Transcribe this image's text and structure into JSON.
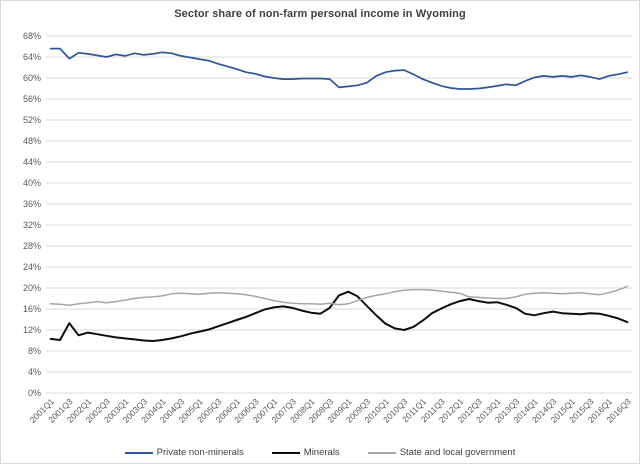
{
  "chart": {
    "border_color": "#d9d9d9",
    "background": "#ffffff"
  },
  "chart_data": {
    "type": "line",
    "title": "Sector share of non-farm personal income in Wyoming",
    "xlabel": "",
    "ylabel": "",
    "ylim": [
      0,
      68
    ],
    "ytick_step": 4,
    "ytick_suffix": "%",
    "x_tick_every": 2,
    "grid": true,
    "legend_position": "bottom",
    "style": {
      "grid_color": "#d9d9d9",
      "tick_label_color": "#595959",
      "title_color": "#404040",
      "legend_text_color": "#404040"
    },
    "categories": [
      "2001Q1",
      "2001Q2",
      "2001Q3",
      "2001Q4",
      "2002Q1",
      "2002Q2",
      "2002Q3",
      "2002Q4",
      "2003Q1",
      "2003Q2",
      "2003Q3",
      "2003Q4",
      "2004Q1",
      "2004Q2",
      "2004Q3",
      "2004Q4",
      "2005Q1",
      "2005Q2",
      "2005Q3",
      "2005Q4",
      "2006Q1",
      "2006Q2",
      "2006Q3",
      "2006Q4",
      "2007Q1",
      "2007Q2",
      "2007Q3",
      "2007Q4",
      "2008Q1",
      "2008Q2",
      "2008Q3",
      "2008Q4",
      "2009Q1",
      "2009Q2",
      "2009Q3",
      "2009Q4",
      "2010Q1",
      "2010Q2",
      "2010Q3",
      "2010Q4",
      "2011Q1",
      "2011Q2",
      "2011Q3",
      "2011Q4",
      "2012Q1",
      "2012Q2",
      "2012Q3",
      "2012Q4",
      "2013Q1",
      "2013Q2",
      "2013Q3",
      "2013Q4",
      "2014Q1",
      "2014Q2",
      "2014Q3",
      "2014Q4",
      "2015Q1",
      "2015Q2",
      "2015Q3",
      "2015Q4",
      "2016Q1",
      "2016Q2",
      "2016Q3"
    ],
    "series": [
      {
        "name": "Private non-minerals",
        "color": "#2f5597",
        "values": [
          65.6,
          65.6,
          63.7,
          64.8,
          64.6,
          64.3,
          64.0,
          64.5,
          64.2,
          64.7,
          64.4,
          64.6,
          64.9,
          64.7,
          64.2,
          63.9,
          63.6,
          63.3,
          62.7,
          62.2,
          61.7,
          61.1,
          60.8,
          60.3,
          60.0,
          59.8,
          59.8,
          59.9,
          59.9,
          59.9,
          59.8,
          58.2,
          58.4,
          58.6,
          59.1,
          60.4,
          61.1,
          61.4,
          61.5,
          60.7,
          59.8,
          59.1,
          58.5,
          58.1,
          57.9,
          57.9,
          58.0,
          58.2,
          58.5,
          58.8,
          58.6,
          59.4,
          60.1,
          60.4,
          60.2,
          60.4,
          60.2,
          60.5,
          60.2,
          59.8,
          60.4,
          60.7,
          61.1
        ]
      },
      {
        "name": "Minerals",
        "color": "#0d0d0d",
        "values": [
          10.3,
          10.1,
          13.3,
          11.0,
          11.5,
          11.2,
          10.9,
          10.6,
          10.4,
          10.2,
          10.0,
          9.9,
          10.1,
          10.4,
          10.8,
          11.3,
          11.7,
          12.1,
          12.7,
          13.3,
          13.9,
          14.5,
          15.2,
          15.9,
          16.3,
          16.5,
          16.2,
          15.7,
          15.3,
          15.1,
          16.2,
          18.6,
          19.3,
          18.4,
          16.6,
          14.8,
          13.2,
          12.3,
          12.0,
          12.6,
          13.8,
          15.2,
          16.1,
          16.9,
          17.5,
          17.9,
          17.5,
          17.2,
          17.3,
          16.8,
          16.2,
          15.1,
          14.8,
          15.2,
          15.5,
          15.2,
          15.1,
          15.0,
          15.2,
          15.1,
          14.7,
          14.2,
          13.5
        ]
      },
      {
        "name": "State and local government",
        "color": "#a6a6a6",
        "values": [
          17.0,
          16.9,
          16.7,
          17.0,
          17.2,
          17.4,
          17.2,
          17.4,
          17.7,
          18.0,
          18.2,
          18.3,
          18.5,
          18.9,
          19.0,
          18.9,
          18.8,
          19.0,
          19.1,
          19.0,
          18.9,
          18.7,
          18.4,
          18.0,
          17.6,
          17.3,
          17.1,
          17.0,
          17.0,
          16.9,
          17.1,
          16.8,
          17.0,
          17.6,
          18.2,
          18.6,
          18.9,
          19.3,
          19.6,
          19.7,
          19.7,
          19.6,
          19.4,
          19.2,
          19.0,
          18.3,
          18.2,
          18.1,
          18.0,
          18.0,
          18.3,
          18.8,
          19.0,
          19.1,
          19.0,
          18.9,
          19.0,
          19.1,
          18.9,
          18.7,
          19.1,
          19.6,
          20.3
        ]
      }
    ]
  }
}
